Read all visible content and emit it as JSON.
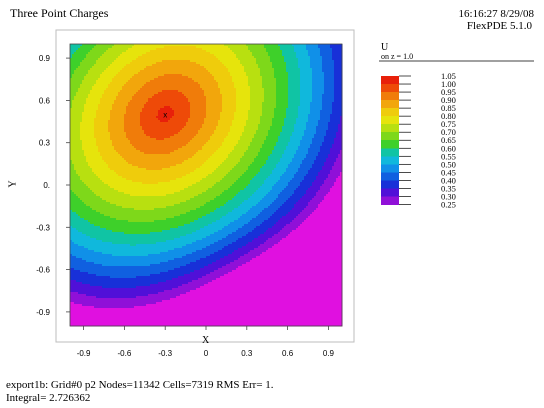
{
  "chart_data": {
    "type": "heatmap",
    "title": "Three Point Charges",
    "timestamp": "16:16:27 8/29/08",
    "software": "FlexPDE 5.1.0",
    "variable": "U",
    "variable_subtitle": "on z = 1.0",
    "xlabel": "X",
    "ylabel": "Y",
    "xlim": [
      -1.0,
      1.0
    ],
    "ylim": [
      -1.0,
      1.0
    ],
    "xticks": [
      -0.9,
      -0.6,
      -0.3,
      0,
      0.3,
      0.6,
      0.9
    ],
    "yticks": [
      0.9,
      0.6,
      0.3,
      0,
      -0.3,
      -0.6,
      -0.9
    ],
    "xtick_labels": [
      "-0.9",
      "-0.6",
      "-0.3",
      "0",
      "0.3",
      "0.6",
      "0.9"
    ],
    "ytick_labels": [
      "0.9",
      "0.6",
      "0.3",
      "0.",
      "-0.3",
      "-0.6",
      "-0.9"
    ],
    "marker": {
      "label": "x",
      "x": -0.3,
      "y": 0.5
    },
    "contour_levels": [
      1.05,
      1.0,
      0.95,
      0.9,
      0.85,
      0.8,
      0.75,
      0.7,
      0.65,
      0.6,
      0.55,
      0.5,
      0.45,
      0.4,
      0.35,
      0.3,
      0.25
    ],
    "level_labels": [
      "1.05",
      "1.00",
      "0.95",
      "0.90",
      "0.85",
      "0.80",
      "0.75",
      "0.70",
      "0.65",
      "0.60",
      "0.55",
      "0.50",
      "0.45",
      "0.40",
      "0.35",
      "0.30",
      "0.25"
    ],
    "level_colors": [
      "#e8200a",
      "#ee4a08",
      "#f07c0a",
      "#f2a60c",
      "#efcc0c",
      "#e6e40c",
      "#b8e010",
      "#7ed81a",
      "#3ed02a",
      "#10c4a4",
      "#10b8dc",
      "#1090e8",
      "#1060e0",
      "#1830d8",
      "#5010d8",
      "#9010d8",
      "#e010e0"
    ],
    "legend_position": "right",
    "footer_line1": "export1b:  Grid#0  p2  Nodes=11342 Cells=7319 RMS Err= 1.",
    "footer_line2": "Integral=  2.726362"
  }
}
